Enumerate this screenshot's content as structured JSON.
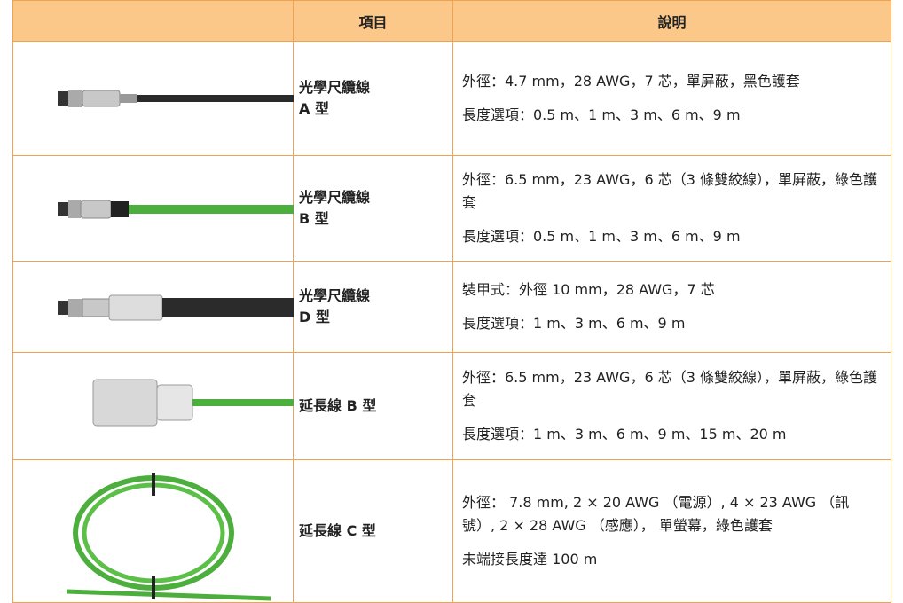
{
  "table": {
    "header": {
      "item": "項目",
      "description": "說明"
    },
    "rows": [
      {
        "item": [
          "光學尺纜線",
          "A 型"
        ],
        "description": [
          "外徑：4.7 mm，28 AWG，7 芯，單屏蔽，黑色護套",
          "長度選項：0.5 m、1 m、3 m、6 m、9 m"
        ]
      },
      {
        "item": [
          "光學尺纜線",
          "B 型"
        ],
        "description": [
          "外徑：6.5 mm，23 AWG，6 芯（3 條雙絞線），單屏蔽，綠色護套",
          "長度選項：0.5 m、1 m、3 m、6 m、9 m"
        ]
      },
      {
        "item": [
          "光學尺纜線",
          "D 型"
        ],
        "description": [
          "裝甲式：外徑 10 mm，28 AWG，7 芯",
          "長度選項：1 m、3 m、6 m、9 m"
        ]
      },
      {
        "item": [
          "延長線 B 型"
        ],
        "description": [
          "外徑：6.5 mm，23 AWG，6 芯（3 條雙絞線），單屏蔽，綠色護套",
          "長度選項：1 m、3 m、6 m、9 m、15 m、20 m"
        ]
      },
      {
        "item": [
          "延長線 C 型"
        ],
        "description": [
          "外徑： 7.8 mm, 2 × 20 AWG （電源）, 4 × 23 AWG （訊號）, 2 × 28 AWG （感應）， 單螢幕，綠色護套",
          "未端接長度達 100 m"
        ]
      }
    ]
  }
}
